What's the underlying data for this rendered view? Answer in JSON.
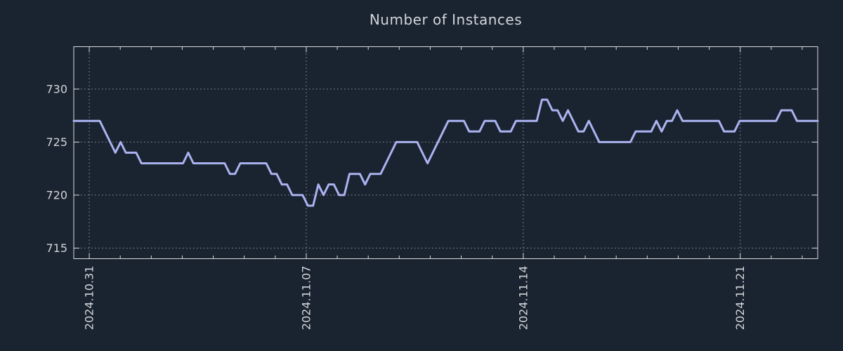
{
  "colors": {
    "background": "#1a2330",
    "line": "#aab3ef",
    "axis": "#d9dadc",
    "grid": "#9298a0",
    "text": "#d2d5d9"
  },
  "chart_data": {
    "type": "line",
    "title": "Number of Instances",
    "xlabel": "",
    "ylabel": "",
    "grid": true,
    "legend": "none",
    "ylim": [
      714,
      734
    ],
    "y_ticks": [
      715,
      720,
      725,
      730
    ],
    "x_range_days": [
      0,
      24
    ],
    "x_ticks": [
      {
        "label": "2024.10.31",
        "day": 0.5
      },
      {
        "label": "2024.11.07",
        "day": 7.5
      },
      {
        "label": "2024.11.14",
        "day": 14.5
      },
      {
        "label": "2024.11.21",
        "day": 21.5
      }
    ],
    "minor_tick_interval_days": 1,
    "sample_interval_hours": 4,
    "values": [
      727,
      727,
      727,
      727,
      727,
      727,
      726,
      725,
      724,
      725,
      724,
      724,
      724,
      723,
      723,
      723,
      723,
      723,
      723,
      723,
      723,
      723,
      724,
      723,
      723,
      723,
      723,
      723,
      723,
      723,
      722,
      722,
      723,
      723,
      723,
      723,
      723,
      723,
      722,
      722,
      721,
      721,
      720,
      720,
      720,
      719,
      719,
      721,
      720,
      721,
      721,
      720,
      720,
      722,
      722,
      722,
      721,
      722,
      722,
      722,
      723,
      724,
      725,
      725,
      725,
      725,
      725,
      724,
      723,
      724,
      725,
      726,
      727,
      727,
      727,
      727,
      726,
      726,
      726,
      727,
      727,
      727,
      726,
      726,
      726,
      727,
      727,
      727,
      727,
      727,
      729,
      729,
      728,
      728,
      727,
      728,
      727,
      726,
      726,
      727,
      726,
      725,
      725,
      725,
      725,
      725,
      725,
      725,
      726,
      726,
      726,
      726,
      727,
      726,
      727,
      727,
      728,
      727,
      727,
      727,
      727,
      727,
      727,
      727,
      727,
      726,
      726,
      726,
      727,
      727,
      727,
      727,
      727,
      727,
      727,
      727,
      728,
      728,
      728,
      727,
      727,
      727,
      727,
      727
    ]
  }
}
